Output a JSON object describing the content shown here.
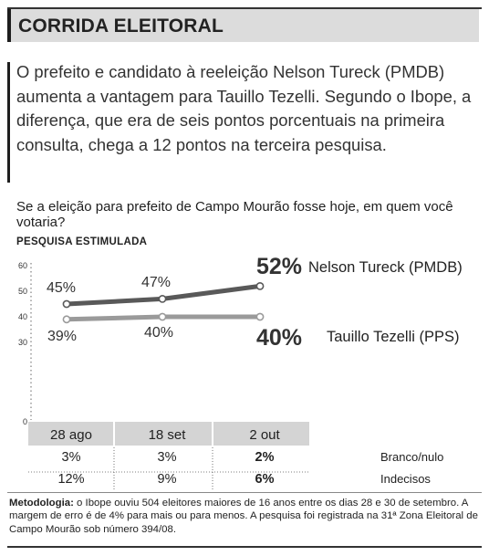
{
  "header": {
    "title": "CORRIDA ELEITORAL"
  },
  "intro": "O prefeito e candidato à reeleição Nelson Tureck (PMDB) aumenta a vantagem para Tauillo Tezelli. Segundo o Ibope, a diferença, que era de seis pontos porcentuais na primeira consulta, chega a 12 pontos na terceira pesquisa.",
  "question": "Se a eleição para prefeito de Campo Mourão fosse hoje, em quem você votaria?",
  "subtitle": "PESQUISA ESTIMULADA",
  "chart_data": {
    "type": "line",
    "categories": [
      "28 ago",
      "18 set",
      "2 out"
    ],
    "ylim": [
      0,
      60
    ],
    "yticks": [
      0,
      30,
      40,
      50,
      60
    ],
    "grid": false,
    "series": [
      {
        "name": "Nelson Tureck (PMDB)",
        "values": [
          45,
          47,
          52
        ],
        "labels": [
          "45%",
          "47%",
          "52%"
        ],
        "color": "#595959"
      },
      {
        "name": "Tauillo Tezelli (PPS)",
        "values": [
          39,
          40,
          40
        ],
        "labels": [
          "39%",
          "40%",
          "40%"
        ],
        "color": "#9a9a9a"
      }
    ],
    "table": {
      "rows": [
        {
          "label": "Branco/nulo",
          "values": [
            "3%",
            "3%",
            "2%"
          ]
        },
        {
          "label": "Indecisos",
          "values": [
            "12%",
            "9%",
            "6%"
          ]
        }
      ]
    }
  },
  "notes": {
    "label": "Metodologia:",
    "text": " o Ibope ouviu 504 eleitores maiores de 16 anos entre os dias 28 e 30 de setembro. A margem de erro é de 4% para mais ou para menos. A pesquisa foi registrada na 31ª Zona Eleitoral de Campo Mourão sob número 394/08."
  },
  "colors": {
    "header_bg": "#dcdcdc",
    "category_bg": "#d4d4d4"
  }
}
